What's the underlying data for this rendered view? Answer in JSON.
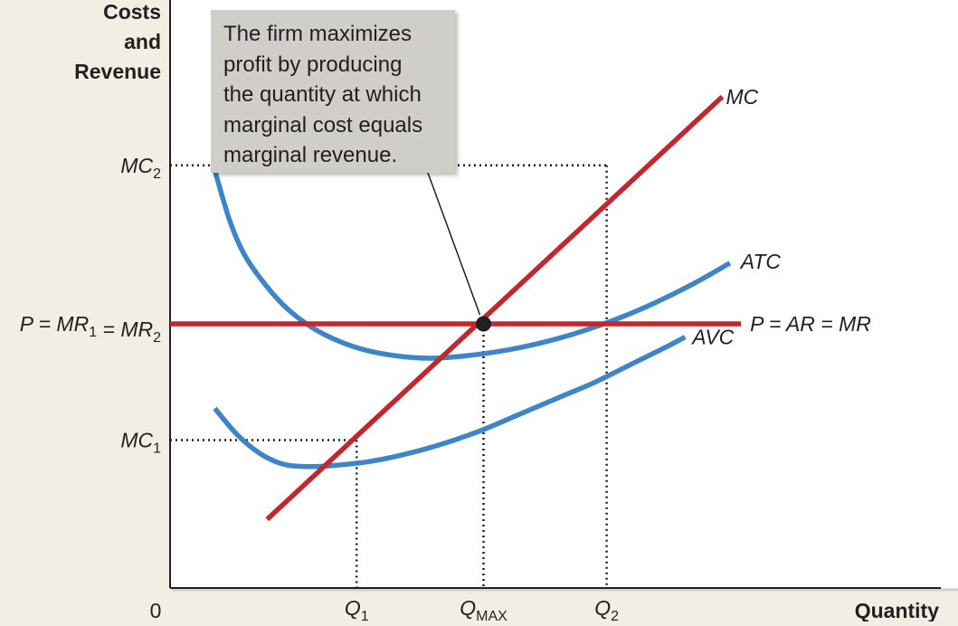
{
  "chart_data": {
    "type": "line",
    "title": "",
    "ylabel": [
      "Costs",
      "and",
      "Revenue"
    ],
    "xlabel": "Quantity",
    "origin_label": "0",
    "xlim": [
      0,
      10
    ],
    "ylim": [
      0,
      10
    ],
    "grid": false,
    "x_ticks": [
      {
        "base": "Q",
        "sub": "1",
        "x": 2.5
      },
      {
        "base": "Q",
        "sub": "MAX",
        "x": 4.2
      },
      {
        "base": "Q",
        "sub": "2",
        "x": 5.85
      }
    ],
    "y_ticks": [
      {
        "parts": [
          {
            "t": "MC"
          },
          {
            "t": "2",
            "sub": true
          }
        ],
        "y": 8.0
      },
      {
        "parts": [
          {
            "t": "P = MR"
          },
          {
            "t": "1",
            "sub": true
          },
          {
            "t": " = MR"
          },
          {
            "t": "2",
            "sub": true
          }
        ],
        "y": 5.0
      },
      {
        "parts": [
          {
            "t": "MC"
          },
          {
            "t": "1",
            "sub": true
          }
        ],
        "y": 2.8
      }
    ],
    "series": [
      {
        "name": "MC",
        "color": "#c1272d",
        "x": [
          1.3,
          7.4
        ],
        "y": [
          1.3,
          9.3
        ]
      },
      {
        "name": "P = AR = MR",
        "color": "#c1272d",
        "x": [
          0,
          7.65
        ],
        "y": [
          5.0,
          5.0
        ]
      },
      {
        "name": "ATC",
        "color": "#3d85c6",
        "x": [
          0.6,
          0.8,
          1.0,
          1.3,
          1.6,
          2.0,
          2.5,
          3.0,
          3.5,
          4.0,
          4.5,
          5.0,
          5.5,
          6.0,
          6.5,
          7.0,
          7.5
        ],
        "y": [
          7.9,
          6.95,
          6.3,
          5.7,
          5.25,
          4.85,
          4.55,
          4.4,
          4.35,
          4.4,
          4.5,
          4.65,
          4.85,
          5.1,
          5.4,
          5.75,
          6.15
        ]
      },
      {
        "name": "AVC",
        "color": "#3d85c6",
        "x": [
          0.6,
          0.9,
          1.2,
          1.5,
          1.8,
          2.2,
          2.7,
          3.2,
          3.7,
          4.2,
          4.7,
          5.2,
          5.7,
          6.2,
          6.7,
          6.9
        ],
        "y": [
          3.4,
          2.9,
          2.55,
          2.35,
          2.3,
          2.32,
          2.4,
          2.55,
          2.75,
          3.0,
          3.3,
          3.6,
          3.9,
          4.25,
          4.6,
          4.75
        ]
      }
    ],
    "series_labels": [
      {
        "text": "MC",
        "for": "MC"
      },
      {
        "text": "ATC",
        "for": "ATC"
      },
      {
        "text": "P = AR = MR",
        "for": "P = AR = MR"
      },
      {
        "text": "AVC",
        "for": "AVC"
      }
    ],
    "guides": [
      {
        "x": 2.5,
        "y": 2.8
      },
      {
        "x": 4.2,
        "y": 5.0
      },
      {
        "x": 5.85,
        "y": 8.0
      }
    ],
    "profit_max_point": {
      "x": 4.2,
      "y": 5.0
    },
    "annotation": {
      "text": "The firm maximizes profit by producing the quantity at which marginal cost equals marginal revenue.",
      "lines": [
        "The firm maximizes",
        "profit by producing",
        "the quantity at which",
        "marginal cost equals",
        "marginal revenue."
      ]
    }
  },
  "colors": {
    "background": "#f1efe4",
    "plot_area": "#ffffff",
    "red_curve": "#c1272d",
    "blue_curve": "#3d85c6",
    "callout_box": "#cfcec9"
  }
}
